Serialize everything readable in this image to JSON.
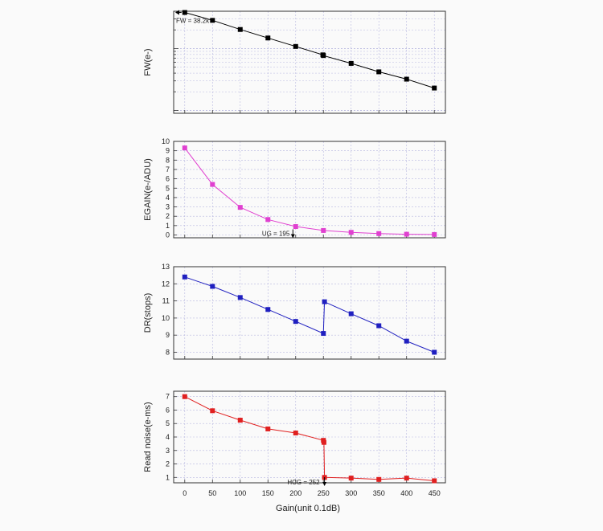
{
  "chart_data": {
    "type": "line",
    "x": [
      0,
      50,
      100,
      150,
      200,
      250,
      300,
      350,
      400,
      450
    ],
    "xlabel": "Gain(unit 0.1dB)",
    "xticks": [
      "0",
      "50",
      "100",
      "150",
      "200",
      "250",
      "300",
      "350",
      "400",
      "450"
    ],
    "xlim": [
      -20,
      470
    ],
    "panels": [
      {
        "name": "fw",
        "ylabel": "FW(e-)",
        "scale": "log",
        "ylim": [
          900,
          40000
        ],
        "yticks": [],
        "color": "#000000",
        "points": [
          [
            0,
            38200
          ],
          [
            50,
            28500
          ],
          [
            100,
            20300
          ],
          [
            150,
            14800
          ],
          [
            200,
            10800
          ],
          [
            249,
            7900
          ],
          [
            250,
            7700
          ],
          [
            300,
            5750
          ],
          [
            350,
            4200
          ],
          [
            400,
            3200
          ],
          [
            450,
            2300
          ]
        ],
        "annotation": {
          "text": "FW = 38.2k",
          "x": 0,
          "y": 38200
        }
      },
      {
        "name": "egain",
        "ylabel": "EGAIN(e-/ADU)",
        "scale": "linear",
        "ylim": [
          -0.3,
          10
        ],
        "yticks": [
          "0",
          "1",
          "2",
          "3",
          "4",
          "5",
          "6",
          "7",
          "8",
          "9",
          "10"
        ],
        "color": "#e040d0",
        "points": [
          [
            0,
            9.3
          ],
          [
            50,
            5.4
          ],
          [
            100,
            2.95
          ],
          [
            150,
            1.65
          ],
          [
            200,
            0.9
          ],
          [
            250,
            0.48
          ],
          [
            300,
            0.28
          ],
          [
            350,
            0.15
          ],
          [
            400,
            0.08
          ],
          [
            450,
            0.05
          ]
        ],
        "annotation": {
          "text": "UG = 195",
          "x": 195,
          "y": 0
        }
      },
      {
        "name": "dr",
        "ylabel": "DR(stops)",
        "scale": "linear",
        "ylim": [
          7.6,
          13
        ],
        "yticks": [
          "8",
          "9",
          "10",
          "11",
          "12",
          "13"
        ],
        "color": "#2020c0",
        "points": [
          [
            0,
            12.4
          ],
          [
            50,
            11.85
          ],
          [
            100,
            11.2
          ],
          [
            150,
            10.5
          ],
          [
            200,
            9.8
          ],
          [
            250,
            9.1
          ],
          [
            252,
            10.95
          ],
          [
            300,
            10.25
          ],
          [
            350,
            9.55
          ],
          [
            400,
            8.65
          ],
          [
            450,
            8.0
          ]
        ],
        "annotation": null
      },
      {
        "name": "rn",
        "ylabel": "Read noise(e-ms)",
        "scale": "linear",
        "ylim": [
          0.6,
          7.4
        ],
        "yticks": [
          "1",
          "2",
          "3",
          "4",
          "5",
          "6",
          "7"
        ],
        "color": "#e02020",
        "points": [
          [
            0,
            7.0
          ],
          [
            50,
            5.95
          ],
          [
            100,
            5.25
          ],
          [
            150,
            4.6
          ],
          [
            200,
            4.3
          ],
          [
            250,
            3.75
          ],
          [
            251,
            3.6
          ],
          [
            252,
            1.0
          ],
          [
            300,
            0.95
          ],
          [
            350,
            0.85
          ],
          [
            400,
            0.95
          ],
          [
            450,
            0.75
          ]
        ],
        "annotation": {
          "text": "HCG = 252",
          "x": 252,
          "y": 0.72
        }
      }
    ]
  }
}
